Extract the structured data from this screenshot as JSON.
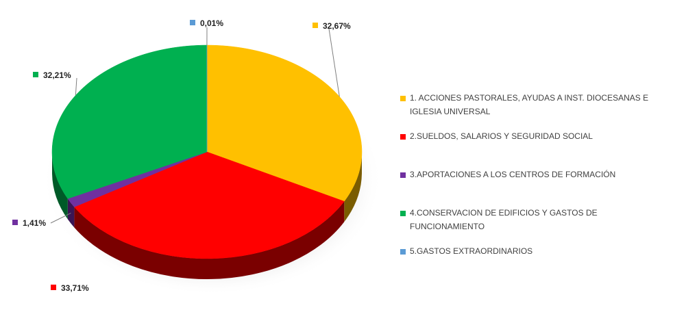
{
  "chart_data": {
    "type": "pie",
    "style": "3d",
    "legend_position": "right",
    "slices": [
      {
        "label": "1. ACCIONES PASTORALES, AYUDAS A INST. DIOCESANAS E IGLESIA UNIVERSAL",
        "value": 32.67,
        "value_label": "32,67%",
        "color": "#FFC000",
        "dark": "#7A5C00"
      },
      {
        "label": "2.SUELDOS, SALARIOS Y SEGURIDAD SOCIAL",
        "value": 33.71,
        "value_label": "33,71%",
        "color": "#FF0000",
        "dark": "#7A0000"
      },
      {
        "label": "3.APORTACIONES A  LOS CENTROS DE FORMACIÓN",
        "value": 1.41,
        "value_label": "1,41%",
        "color": "#7030A0",
        "dark": "#3A1554"
      },
      {
        "label": "4.CONSERVACION DE EDIFICIOS Y GASTOS DE FUNCIONAMIENTO",
        "value": 32.21,
        "value_label": "32,21%",
        "color": "#00B050",
        "dark": "#005A28"
      },
      {
        "label": "5.GASTOS EXTRAORDINARIOS",
        "value": 0.01,
        "value_label": "0,01%",
        "color": "#5B9BD5",
        "dark": "#2E4E6B"
      }
    ]
  }
}
